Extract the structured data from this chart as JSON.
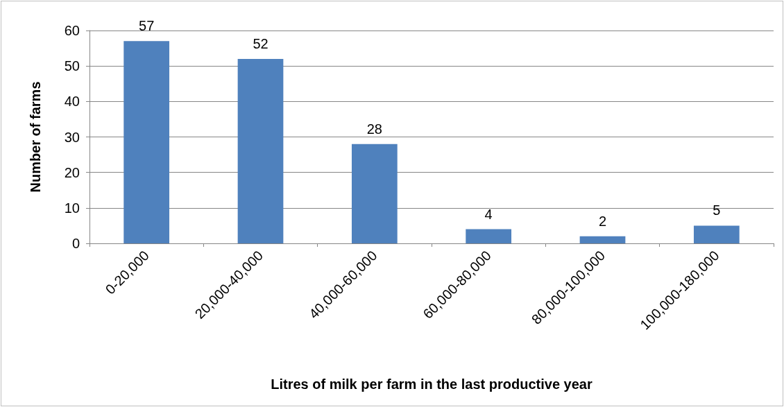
{
  "chart_data": {
    "type": "bar",
    "xlabel": "Litres of milk per farm in the last productive year",
    "ylabel": "Number of farms",
    "categories": [
      "0-20,000",
      "20,000-40,000",
      "40,000-60,000",
      "60,000-80,000",
      "80,000-100,000",
      "100,000-180,000"
    ],
    "values": [
      57,
      52,
      28,
      4,
      2,
      5
    ],
    "color": "#4f81bd",
    "data_labels": true,
    "ylim": [
      0,
      60
    ],
    "yticks": [
      0,
      10,
      20,
      30,
      40,
      50,
      60
    ],
    "grid": "y"
  }
}
